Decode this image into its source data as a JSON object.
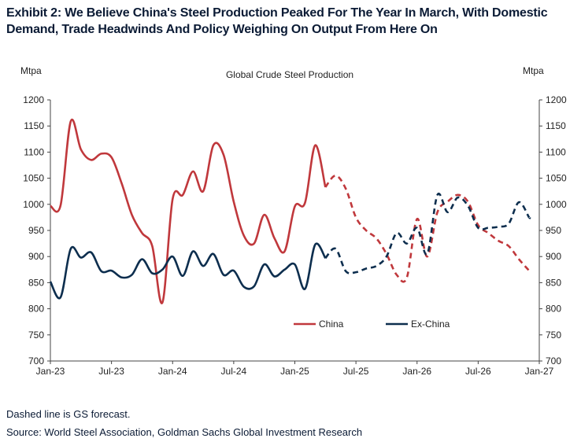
{
  "exhibit": {
    "title": "Exhibit 2: We Believe China's Steel Production Peaked For The Year In March, With Domestic Demand, Trade Headwinds And Policy Weighing On Output From Here On",
    "footnote": "Dashed line is GS forecast.",
    "source": "Source: World Steel Association, Goldman Sachs Global Investment Research"
  },
  "chart_data": {
    "type": "line",
    "title": "Global Crude  Steel Production",
    "ylabel_left": "Mtpa",
    "ylabel_right": "Mtpa",
    "ylim": [
      700,
      1200
    ],
    "yticks": [
      700,
      750,
      800,
      850,
      900,
      950,
      1000,
      1050,
      1100,
      1150,
      1200
    ],
    "xlim": [
      "2023-01",
      "2027-01"
    ],
    "xticks": [
      "Jan-23",
      "Jul-23",
      "Jan-24",
      "Jul-24",
      "Jan-25",
      "Jul-25",
      "Jan-26",
      "Jul-26",
      "Jan-27"
    ],
    "grid": false,
    "legend_position": "bottom-right",
    "colors": {
      "China": "#c0383c",
      "Ex-China": "#0d2e4e"
    },
    "series": [
      {
        "name": "China",
        "actual": [
          [
            "2023-01",
            997
          ],
          [
            "2023-02",
            998
          ],
          [
            "2023-03",
            1159
          ],
          [
            "2023-04",
            1105
          ],
          [
            "2023-05",
            1085
          ],
          [
            "2023-06",
            1097
          ],
          [
            "2023-07",
            1090
          ],
          [
            "2023-08",
            1040
          ],
          [
            "2023-09",
            980
          ],
          [
            "2023-10",
            945
          ],
          [
            "2023-11",
            920
          ],
          [
            "2023-12",
            812
          ],
          [
            "2024-01",
            1010
          ],
          [
            "2024-02",
            1018
          ],
          [
            "2024-03",
            1063
          ],
          [
            "2024-04",
            1025
          ],
          [
            "2024-05",
            1113
          ],
          [
            "2024-06",
            1095
          ],
          [
            "2024-07",
            1005
          ],
          [
            "2024-08",
            940
          ],
          [
            "2024-09",
            925
          ],
          [
            "2024-10",
            980
          ],
          [
            "2024-11",
            935
          ],
          [
            "2024-12",
            910
          ],
          [
            "2025-01",
            996
          ],
          [
            "2025-02",
            1003
          ],
          [
            "2025-03",
            1113
          ],
          [
            "2025-04",
            1033
          ]
        ],
        "forecast": [
          [
            "2025-04",
            1033
          ],
          [
            "2025-05",
            1055
          ],
          [
            "2025-06",
            1030
          ],
          [
            "2025-07",
            975
          ],
          [
            "2025-08",
            950
          ],
          [
            "2025-09",
            935
          ],
          [
            "2025-10",
            905
          ],
          [
            "2025-11",
            865
          ],
          [
            "2025-12",
            860
          ],
          [
            "2026-01",
            972
          ],
          [
            "2026-02",
            900
          ],
          [
            "2026-03",
            985
          ],
          [
            "2026-04",
            1005
          ],
          [
            "2026-05",
            1018
          ],
          [
            "2026-06",
            1005
          ],
          [
            "2026-07",
            960
          ],
          [
            "2026-08",
            945
          ],
          [
            "2026-09",
            930
          ],
          [
            "2026-10",
            920
          ],
          [
            "2026-11",
            895
          ],
          [
            "2026-12",
            873
          ],
          [
            "2027-00",
            873
          ]
        ]
      },
      {
        "name": "Ex-China",
        "actual": [
          [
            "2023-01",
            852
          ],
          [
            "2023-02",
            822
          ],
          [
            "2023-03",
            915
          ],
          [
            "2023-04",
            898
          ],
          [
            "2023-05",
            908
          ],
          [
            "2023-06",
            872
          ],
          [
            "2023-07",
            873
          ],
          [
            "2023-08",
            860
          ],
          [
            "2023-09",
            865
          ],
          [
            "2023-10",
            895
          ],
          [
            "2023-11",
            868
          ],
          [
            "2023-12",
            875
          ],
          [
            "2024-01",
            900
          ],
          [
            "2024-02",
            863
          ],
          [
            "2024-03",
            910
          ],
          [
            "2024-04",
            882
          ],
          [
            "2024-05",
            905
          ],
          [
            "2024-06",
            865
          ],
          [
            "2024-07",
            873
          ],
          [
            "2024-08",
            842
          ],
          [
            "2024-09",
            843
          ],
          [
            "2024-10",
            885
          ],
          [
            "2024-11",
            862
          ],
          [
            "2024-12",
            875
          ],
          [
            "2025-01",
            885
          ],
          [
            "2025-02",
            838
          ],
          [
            "2025-03",
            923
          ],
          [
            "2025-04",
            897
          ]
        ],
        "forecast": [
          [
            "2025-04",
            897
          ],
          [
            "2025-05",
            915
          ],
          [
            "2025-06",
            872
          ],
          [
            "2025-07",
            870
          ],
          [
            "2025-08",
            877
          ],
          [
            "2025-09",
            882
          ],
          [
            "2025-10",
            900
          ],
          [
            "2025-11",
            945
          ],
          [
            "2025-12",
            925
          ],
          [
            "2026-01",
            955
          ],
          [
            "2026-02",
            905
          ],
          [
            "2026-03",
            1018
          ],
          [
            "2026-04",
            985
          ],
          [
            "2026-05",
            1013
          ],
          [
            "2026-06",
            997
          ],
          [
            "2026-07",
            955
          ],
          [
            "2026-08",
            955
          ],
          [
            "2026-09",
            957
          ],
          [
            "2026-10",
            963
          ],
          [
            "2026-11",
            1004
          ],
          [
            "2026-12",
            975
          ],
          [
            "2027-00",
            978
          ]
        ]
      }
    ]
  }
}
